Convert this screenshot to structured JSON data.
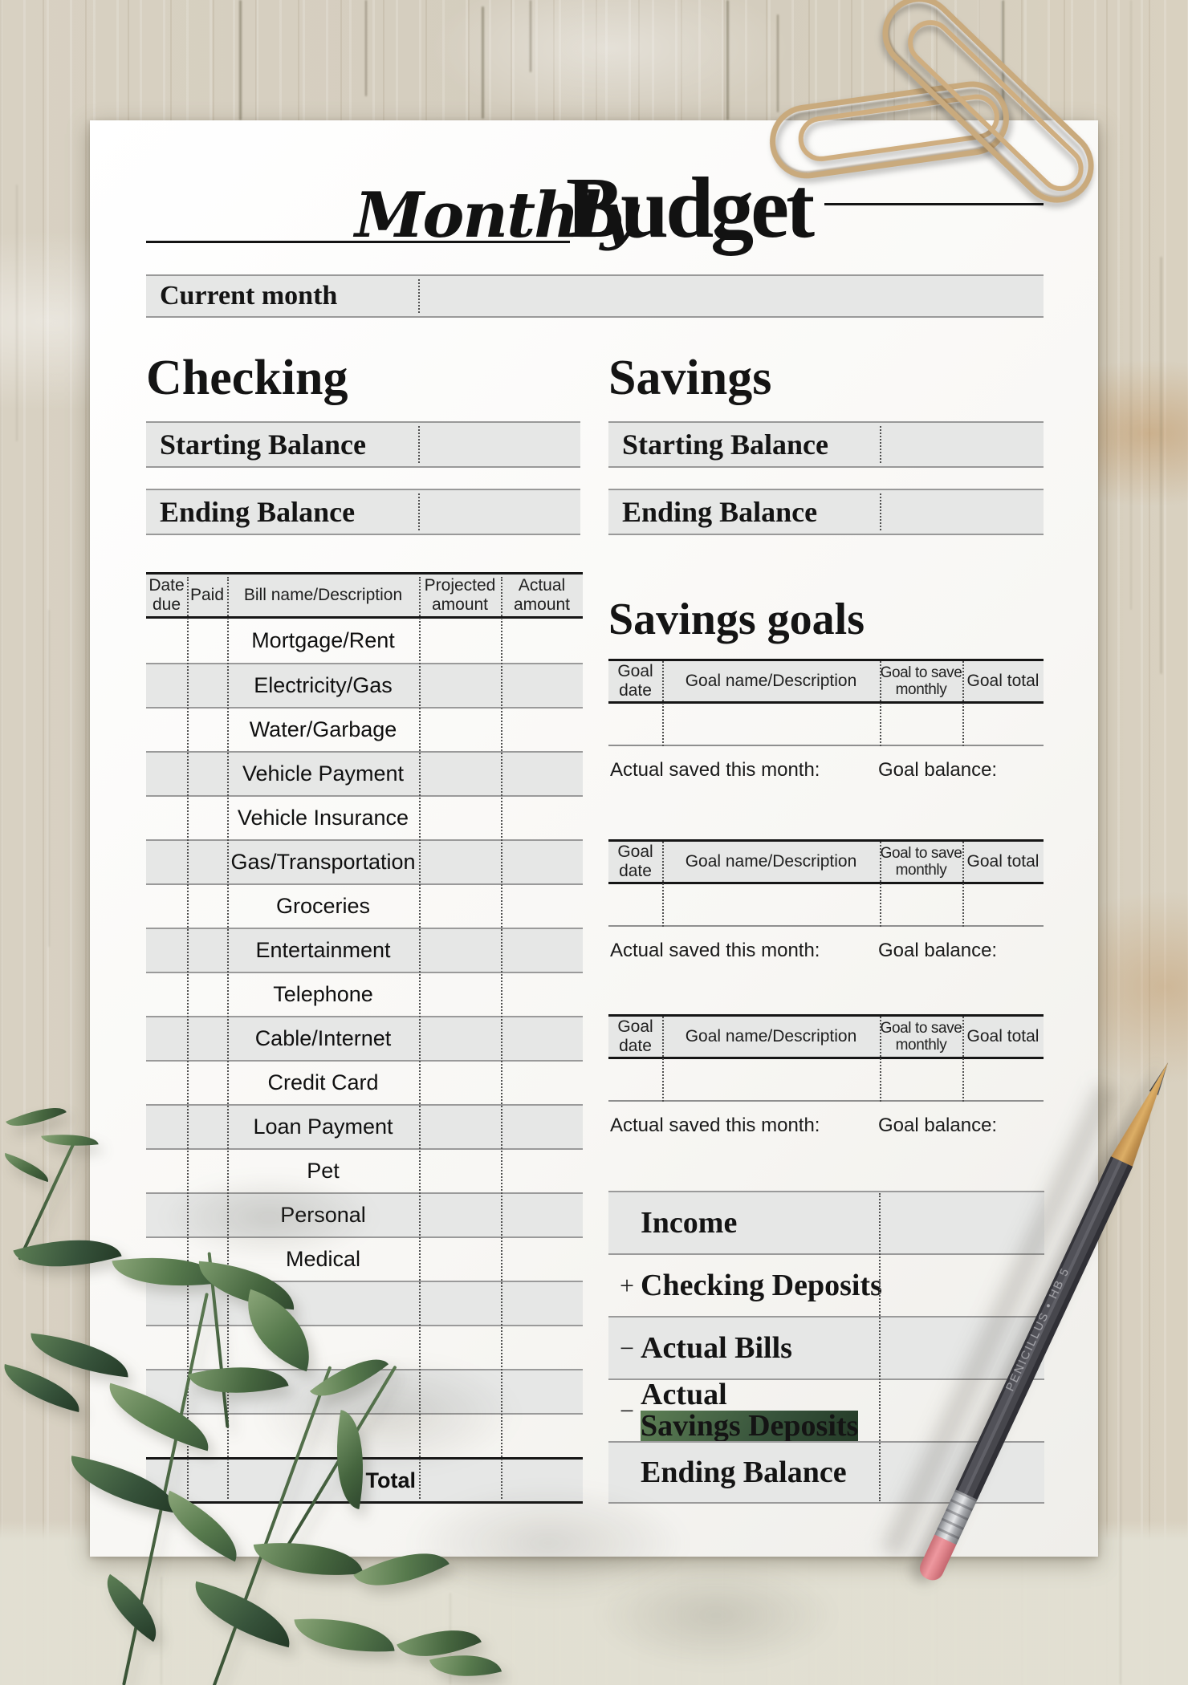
{
  "page": {
    "title_script": "Monthly",
    "title_main": "Budget"
  },
  "current_month": {
    "label": "Current month",
    "value": ""
  },
  "checking": {
    "heading": "Checking",
    "starting_label": "Starting Balance",
    "starting_value": "",
    "ending_label": "Ending Balance",
    "ending_value": ""
  },
  "savings": {
    "heading": "Savings",
    "starting_label": "Starting Balance",
    "starting_value": "",
    "ending_label": "Ending Balance",
    "ending_value": ""
  },
  "bills": {
    "headers": [
      "Date due",
      "Paid",
      "Bill name/Description",
      "Projected amount",
      "Actual amount"
    ],
    "rows": [
      "Mortgage/Rent",
      "Electricity/Gas",
      "Water/Garbage",
      "Vehicle Payment",
      "Vehicle Insurance",
      "Gas/Transportation",
      "Groceries",
      "Entertainment",
      "Telephone",
      "Cable/Internet",
      "Credit Card",
      "Loan Payment",
      "Pet",
      "Personal",
      "Medical",
      "",
      "",
      "",
      ""
    ],
    "total_label": "Total"
  },
  "goals": {
    "heading": "Savings goals",
    "headers": [
      "Goal date",
      "Goal name/Description",
      "Goal to save monthly",
      "Goal total"
    ],
    "actual_saved_label": "Actual saved this month:",
    "goal_balance_label": "Goal balance:"
  },
  "summary": {
    "rows": [
      {
        "sign": "",
        "label": "Income",
        "label2": ""
      },
      {
        "sign": "+",
        "label": "Checking Deposits",
        "label2": ""
      },
      {
        "sign": "−",
        "label": "Actual Bills",
        "label2": ""
      },
      {
        "sign": "−",
        "label": "Actual",
        "label2": "Savings Deposits"
      },
      {
        "sign": "",
        "label": "Ending Balance",
        "label2": ""
      }
    ]
  },
  "pencil": {
    "brand": "PENICILLUS",
    "grade": "HB 5"
  },
  "colors": {
    "row_gray": "#e6e7e6",
    "border_dark": "#151515",
    "border_gray": "#9a9a9a",
    "dotted": "#4f4f4f",
    "paper": "#fcfcfb",
    "clip_gold": "#c9aa7d",
    "pencil_body": "#47474c",
    "eraser_pink": "#e2868c",
    "leaf_green": "#4e6f47"
  }
}
